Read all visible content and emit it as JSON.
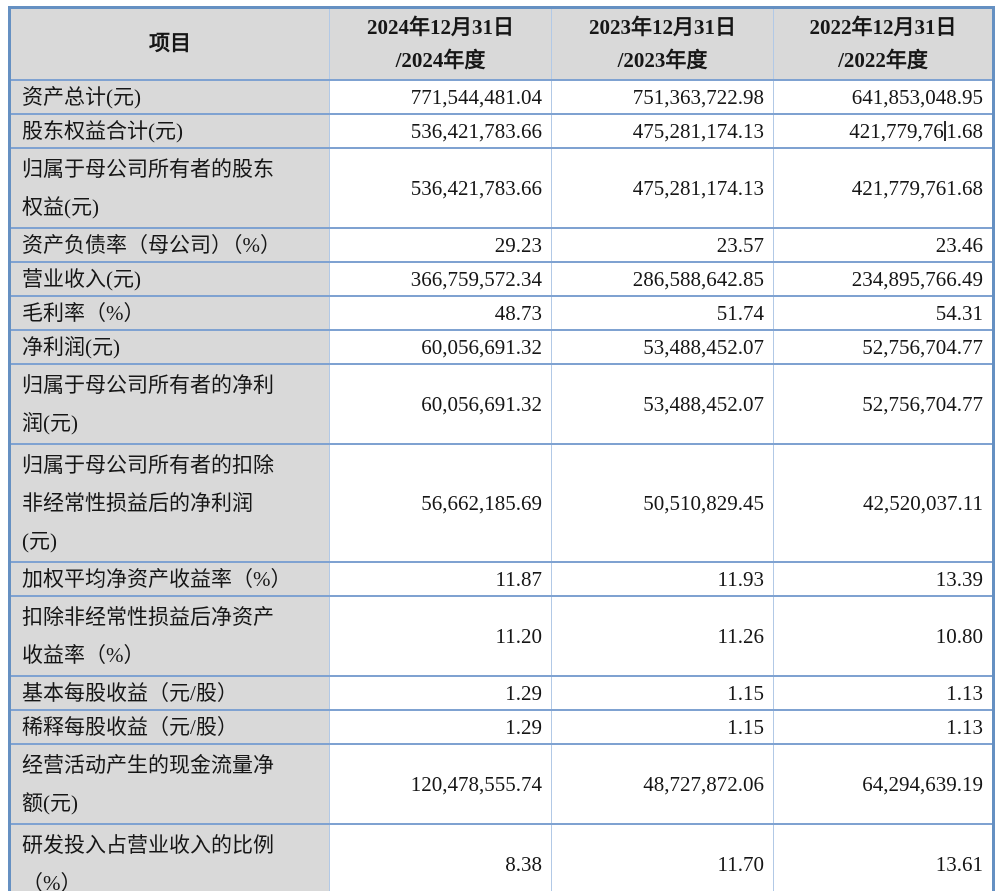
{
  "table": {
    "header": {
      "item_label": "项目",
      "periods": [
        "2024年12月31日\n/2024年度",
        "2023年12月31日\n/2023年度",
        "2022年12月31日\n/2022年度"
      ]
    },
    "rows": [
      {
        "label": "资产总计(元)",
        "values": [
          "771,544,481.04",
          "751,363,722.98",
          "641,853,048.95"
        ]
      },
      {
        "label": "股东权益合计(元)",
        "values": [
          "536,421,783.66",
          "475,281,174.13",
          "421,779,761.68"
        ],
        "caret": {
          "col": 2,
          "before": "421,779,76",
          "after": "1.68"
        }
      },
      {
        "label": "归属于母公司所有者的股东\n权益(元)",
        "values": [
          "536,421,783.66",
          "475,281,174.13",
          "421,779,761.68"
        ]
      },
      {
        "label": "资产负债率（母公司）（%）",
        "values": [
          "29.23",
          "23.57",
          "23.46"
        ]
      },
      {
        "label": "营业收入(元)",
        "values": [
          "366,759,572.34",
          "286,588,642.85",
          "234,895,766.49"
        ]
      },
      {
        "label": "毛利率（%）",
        "values": [
          "48.73",
          "51.74",
          "54.31"
        ]
      },
      {
        "label": "净利润(元)",
        "values": [
          "60,056,691.32",
          "53,488,452.07",
          "52,756,704.77"
        ]
      },
      {
        "label": "归属于母公司所有者的净利\n润(元)",
        "values": [
          "60,056,691.32",
          "53,488,452.07",
          "52,756,704.77"
        ]
      },
      {
        "label": "归属于母公司所有者的扣除\n非经常性损益后的净利润\n(元)",
        "values": [
          "56,662,185.69",
          "50,510,829.45",
          "42,520,037.11"
        ]
      },
      {
        "label": "加权平均净资产收益率（%）",
        "values": [
          "11.87",
          "11.93",
          "13.39"
        ]
      },
      {
        "label": "扣除非经常性损益后净资产\n收益率（%）",
        "values": [
          "11.20",
          "11.26",
          "10.80"
        ]
      },
      {
        "label": "基本每股收益（元/股）",
        "values": [
          "1.29",
          "1.15",
          "1.13"
        ]
      },
      {
        "label": "稀释每股收益（元/股）",
        "values": [
          "1.29",
          "1.15",
          "1.13"
        ]
      },
      {
        "label": "经营活动产生的现金流量净\n额(元)",
        "values": [
          "120,478,555.74",
          "48,727,872.06",
          "64,294,639.19"
        ]
      },
      {
        "label": "研发投入占营业收入的比例\n（%）",
        "values": [
          "8.38",
          "11.70",
          "13.61"
        ]
      }
    ],
    "colors": {
      "border_outer": "#6590c2",
      "border_inner_horizontal": "#7fa2d1",
      "border_inner_vertical": "#b2c9e6",
      "header_bg": "#d9d9d9",
      "label_bg": "#d9d9d9",
      "value_bg": "#ffffff",
      "text": "#161616",
      "caret": "#2a2a2a"
    }
  }
}
